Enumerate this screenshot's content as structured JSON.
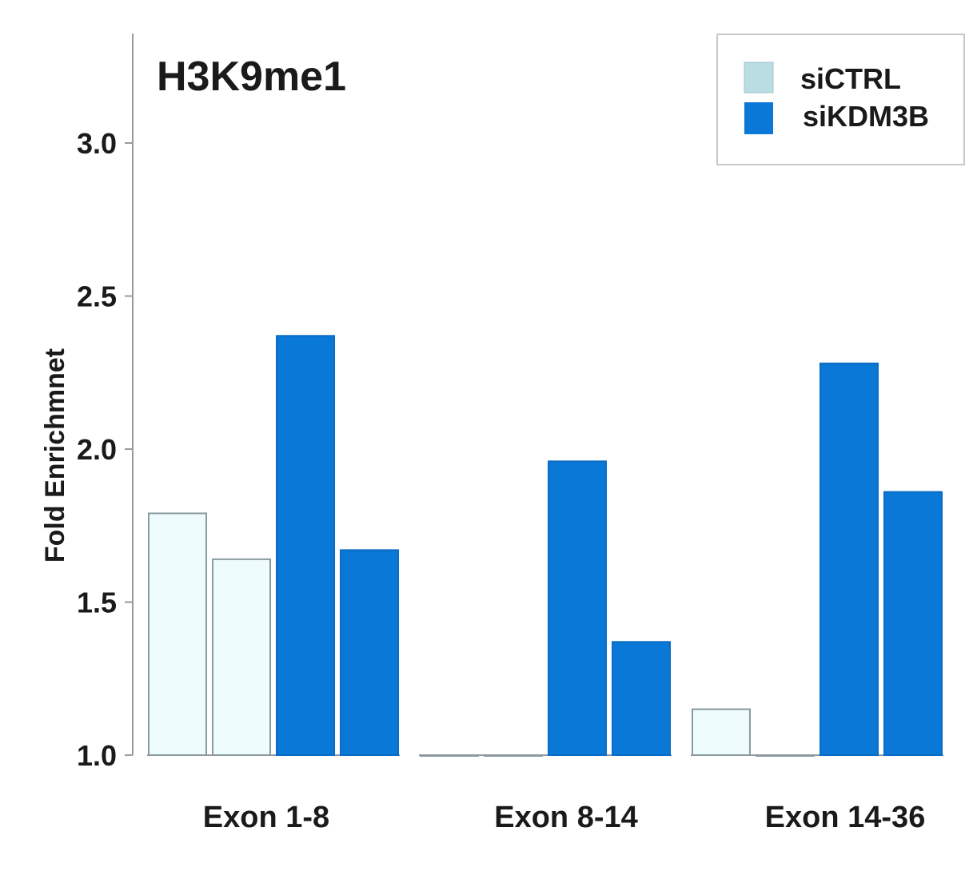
{
  "chart_data": {
    "type": "bar",
    "title": "H3K9me1",
    "ylabel": "Fold Enrichmnet",
    "xlabel": "",
    "ylim": [
      1.0,
      3.3
    ],
    "yticks": [
      "1.0",
      "1.5",
      "2.0",
      "2.5",
      "3.0"
    ],
    "categories": [
      "Exon 1-8",
      "Exon 8-14",
      "Exon 14-36"
    ],
    "grid": false,
    "legend_position": "top-right",
    "legend": [
      {
        "label": "siCTRL",
        "color": "#b9dde3"
      },
      {
        "label": "siKDM3B",
        "color": "#0a78d6"
      }
    ],
    "series": [
      {
        "name": "siCTRL",
        "color": "#effcfe",
        "border": "#8a9aa0",
        "values": [
          [
            1.79,
            1.64
          ],
          [
            1.0,
            1.0
          ],
          [
            1.15,
            1.0
          ]
        ]
      },
      {
        "name": "siKDM3B",
        "color": "#0a78d6",
        "border": "#0a6cc4",
        "values": [
          [
            2.37,
            1.67
          ],
          [
            1.96,
            1.37
          ],
          [
            2.28,
            1.86
          ]
        ]
      }
    ]
  }
}
